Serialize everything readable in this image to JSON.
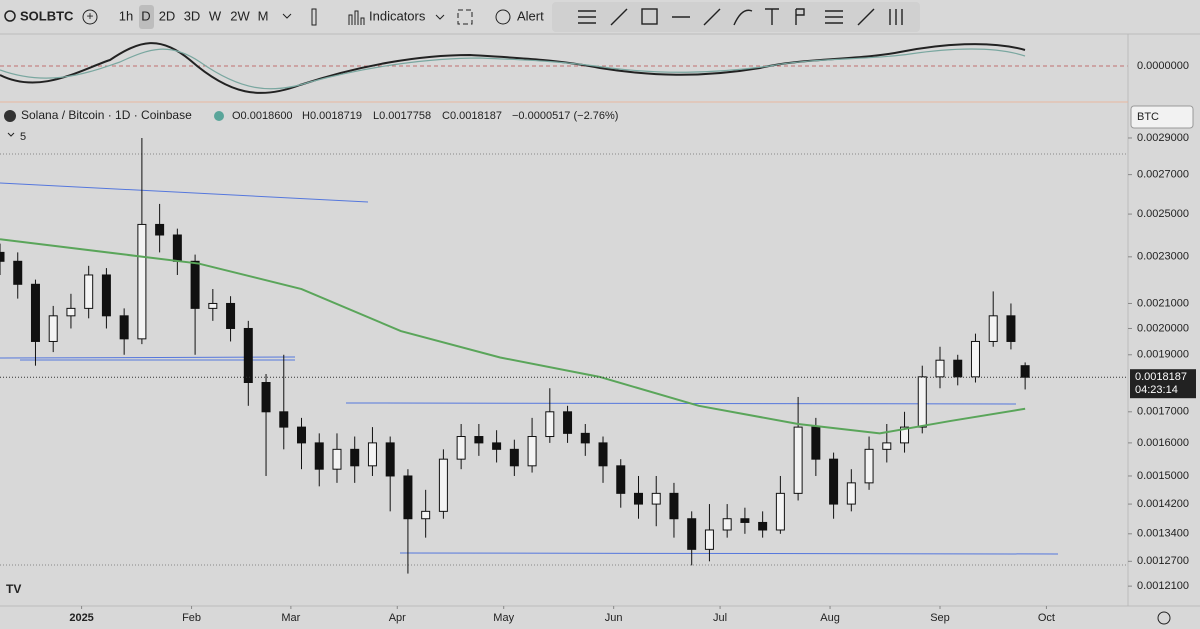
{
  "toolbar": {
    "symbol": "SOLBTC",
    "intervals": [
      "1h",
      "D",
      "2D",
      "3D",
      "W",
      "2W",
      "M"
    ],
    "indicators": "Indicators",
    "alert": "Alert"
  },
  "oscillator": {
    "axis_label": "0.0000000"
  },
  "legend": {
    "name": "Solana / Bitcoin · 1D · Coinbase",
    "open": "O0.0018600",
    "high": "H0.0018719",
    "low": "L0.0017758",
    "close": "C0.0018187",
    "change": "−0.0000517 (−2.76%)",
    "count": "5"
  },
  "currency": "BTC",
  "chart_data": {
    "type": "candlestick",
    "log_scale": true,
    "x": [
      0,
      5,
      10,
      15,
      20,
      25,
      30,
      35,
      40,
      45,
      50,
      55,
      60,
      65,
      70,
      75,
      80,
      85,
      90,
      95,
      100,
      105,
      110,
      115,
      120,
      125,
      130,
      135,
      140,
      145,
      150,
      155,
      160,
      165,
      170,
      175,
      180,
      185,
      190,
      195,
      200,
      205,
      210,
      215,
      220,
      225,
      230,
      235,
      240,
      245,
      250,
      255,
      260,
      265,
      270,
      275,
      280,
      285,
      289
    ],
    "open": [
      0.00232,
      0.00228,
      0.00218,
      0.00195,
      0.00205,
      0.00208,
      0.00222,
      0.00205,
      0.00196,
      0.00245,
      0.0024,
      0.00228,
      0.00208,
      0.0021,
      0.002,
      0.0018,
      0.0017,
      0.00165,
      0.0016,
      0.00152,
      0.00158,
      0.00153,
      0.0016,
      0.0015,
      0.00138,
      0.0014,
      0.00155,
      0.00162,
      0.0016,
      0.00158,
      0.00153,
      0.00162,
      0.0017,
      0.00163,
      0.0016,
      0.00153,
      0.00145,
      0.00142,
      0.00145,
      0.00138,
      0.0013,
      0.00135,
      0.00138,
      0.00137,
      0.00135,
      0.00145,
      0.00165,
      0.00155,
      0.00142,
      0.00148,
      0.00158,
      0.0016,
      0.00165,
      0.00182,
      0.00188,
      0.00182,
      0.00195,
      0.00205,
      0.00186
    ],
    "high": [
      0.00236,
      0.00232,
      0.0022,
      0.00209,
      0.00214,
      0.00226,
      0.00225,
      0.00208,
      0.0029,
      0.00255,
      0.00243,
      0.00231,
      0.00216,
      0.00213,
      0.00203,
      0.00183,
      0.0019,
      0.00168,
      0.00163,
      0.00163,
      0.00162,
      0.00165,
      0.00162,
      0.00152,
      0.00146,
      0.00158,
      0.00166,
      0.00166,
      0.00164,
      0.00161,
      0.00168,
      0.00178,
      0.00172,
      0.00166,
      0.00162,
      0.00155,
      0.0015,
      0.0015,
      0.00148,
      0.0014,
      0.00142,
      0.00142,
      0.00141,
      0.0014,
      0.0015,
      0.00175,
      0.00168,
      0.00157,
      0.00152,
      0.00162,
      0.00166,
      0.0017,
      0.00186,
      0.00193,
      0.0019,
      0.00198,
      0.00215,
      0.0021,
      0.0018719
    ],
    "low": [
      0.00222,
      0.00212,
      0.00186,
      0.00191,
      0.002,
      0.00204,
      0.002,
      0.0019,
      0.00194,
      0.00232,
      0.00222,
      0.0019,
      0.00203,
      0.00195,
      0.00172,
      0.0015,
      0.00158,
      0.00152,
      0.00147,
      0.00148,
      0.00148,
      0.0015,
      0.0014,
      0.00124,
      0.00133,
      0.00138,
      0.00152,
      0.00156,
      0.00154,
      0.0015,
      0.00151,
      0.0016,
      0.0016,
      0.00156,
      0.00148,
      0.00141,
      0.00138,
      0.00136,
      0.00133,
      0.00126,
      0.00127,
      0.00133,
      0.00134,
      0.00133,
      0.00134,
      0.00143,
      0.0015,
      0.00138,
      0.0014,
      0.00146,
      0.00154,
      0.00157,
      0.00163,
      0.00178,
      0.00179,
      0.0018,
      0.00193,
      0.00192,
      0.0017758
    ],
    "close": [
      0.00228,
      0.00218,
      0.00195,
      0.00205,
      0.00208,
      0.00222,
      0.00205,
      0.00196,
      0.00245,
      0.0024,
      0.00228,
      0.00208,
      0.0021,
      0.002,
      0.0018,
      0.0017,
      0.00165,
      0.0016,
      0.00152,
      0.00158,
      0.00153,
      0.0016,
      0.0015,
      0.00138,
      0.0014,
      0.00155,
      0.00162,
      0.0016,
      0.00158,
      0.00153,
      0.00162,
      0.0017,
      0.00163,
      0.0016,
      0.00153,
      0.00145,
      0.00142,
      0.00145,
      0.00138,
      0.0013,
      0.00135,
      0.00138,
      0.00137,
      0.00135,
      0.00145,
      0.00165,
      0.00155,
      0.00142,
      0.00148,
      0.00158,
      0.0016,
      0.00165,
      0.00182,
      0.00188,
      0.00182,
      0.00195,
      0.00205,
      0.00195,
      0.0018187
    ],
    "ma": {
      "color": "#5aa55a",
      "x": [
        0,
        56,
        85,
        113,
        141,
        169,
        197,
        225,
        248,
        268,
        289
      ],
      "values": [
        0.00238,
        0.00227,
        0.00216,
        0.00199,
        0.00189,
        0.00182,
        0.00172,
        0.00166,
        0.00163,
        0.00167,
        0.00171
      ]
    },
    "xlim": [
      0,
      318
    ],
    "ylim": [
      0.001164,
      0.002957
    ],
    "xticks": [
      {
        "value": 23,
        "label": "2025"
      },
      {
        "value": 54,
        "label": "Feb"
      },
      {
        "value": 82,
        "label": "Mar"
      },
      {
        "value": 112,
        "label": "Apr"
      },
      {
        "value": 142,
        "label": "May"
      },
      {
        "value": 173,
        "label": "Jun"
      },
      {
        "value": 203,
        "label": "Jul"
      },
      {
        "value": 234,
        "label": "Aug"
      },
      {
        "value": 265,
        "label": "Sep"
      },
      {
        "value": 295,
        "label": "Oct"
      }
    ],
    "yticks": [
      {
        "value": 0.0029,
        "label": "0.0029000"
      },
      {
        "value": 0.0027,
        "label": "0.0027000"
      },
      {
        "value": 0.0025,
        "label": "0.0025000"
      },
      {
        "value": 0.0023,
        "label": "0.0023000"
      },
      {
        "value": 0.0021,
        "label": "0.0021000"
      },
      {
        "value": 0.002,
        "label": "0.0020000"
      },
      {
        "value": 0.0019,
        "label": "0.0019000"
      },
      {
        "value": 0.0017,
        "label": "0.0017000"
      },
      {
        "value": 0.0016,
        "label": "0.0016000"
      },
      {
        "value": 0.0015,
        "label": "0.0015000"
      },
      {
        "value": 0.00142,
        "label": "0.0014200"
      },
      {
        "value": 0.00134,
        "label": "0.0013400"
      },
      {
        "value": 0.00127,
        "label": "0.0012700"
      },
      {
        "value": 0.00121,
        "label": "0.0012100"
      }
    ],
    "last_price": {
      "value": 0.0018187,
      "label": "0.0018187"
    },
    "countdown": "04:23:14"
  }
}
